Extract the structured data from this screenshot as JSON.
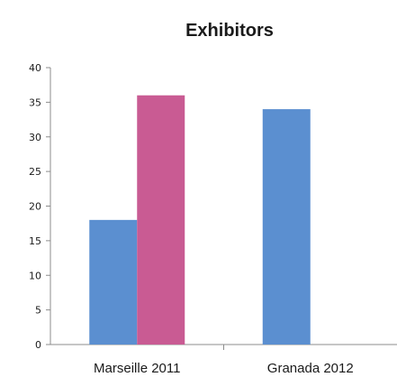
{
  "chart_data": {
    "type": "bar",
    "title": "Exhibitors",
    "xlabel": "",
    "ylabel": "",
    "categories": [
      "Marseille 2011",
      "Granada 2012"
    ],
    "series": [
      {
        "values": [
          18,
          34
        ],
        "color": "#5b8fd0"
      },
      {
        "values": [
          36,
          null
        ],
        "color": "#c95b93"
      }
    ],
    "ylim": [
      0,
      40
    ],
    "yticks": [
      "0",
      "5",
      "10",
      "15",
      "20",
      "25",
      "30",
      "35",
      "40"
    ],
    "grid": false,
    "legend": "none"
  }
}
